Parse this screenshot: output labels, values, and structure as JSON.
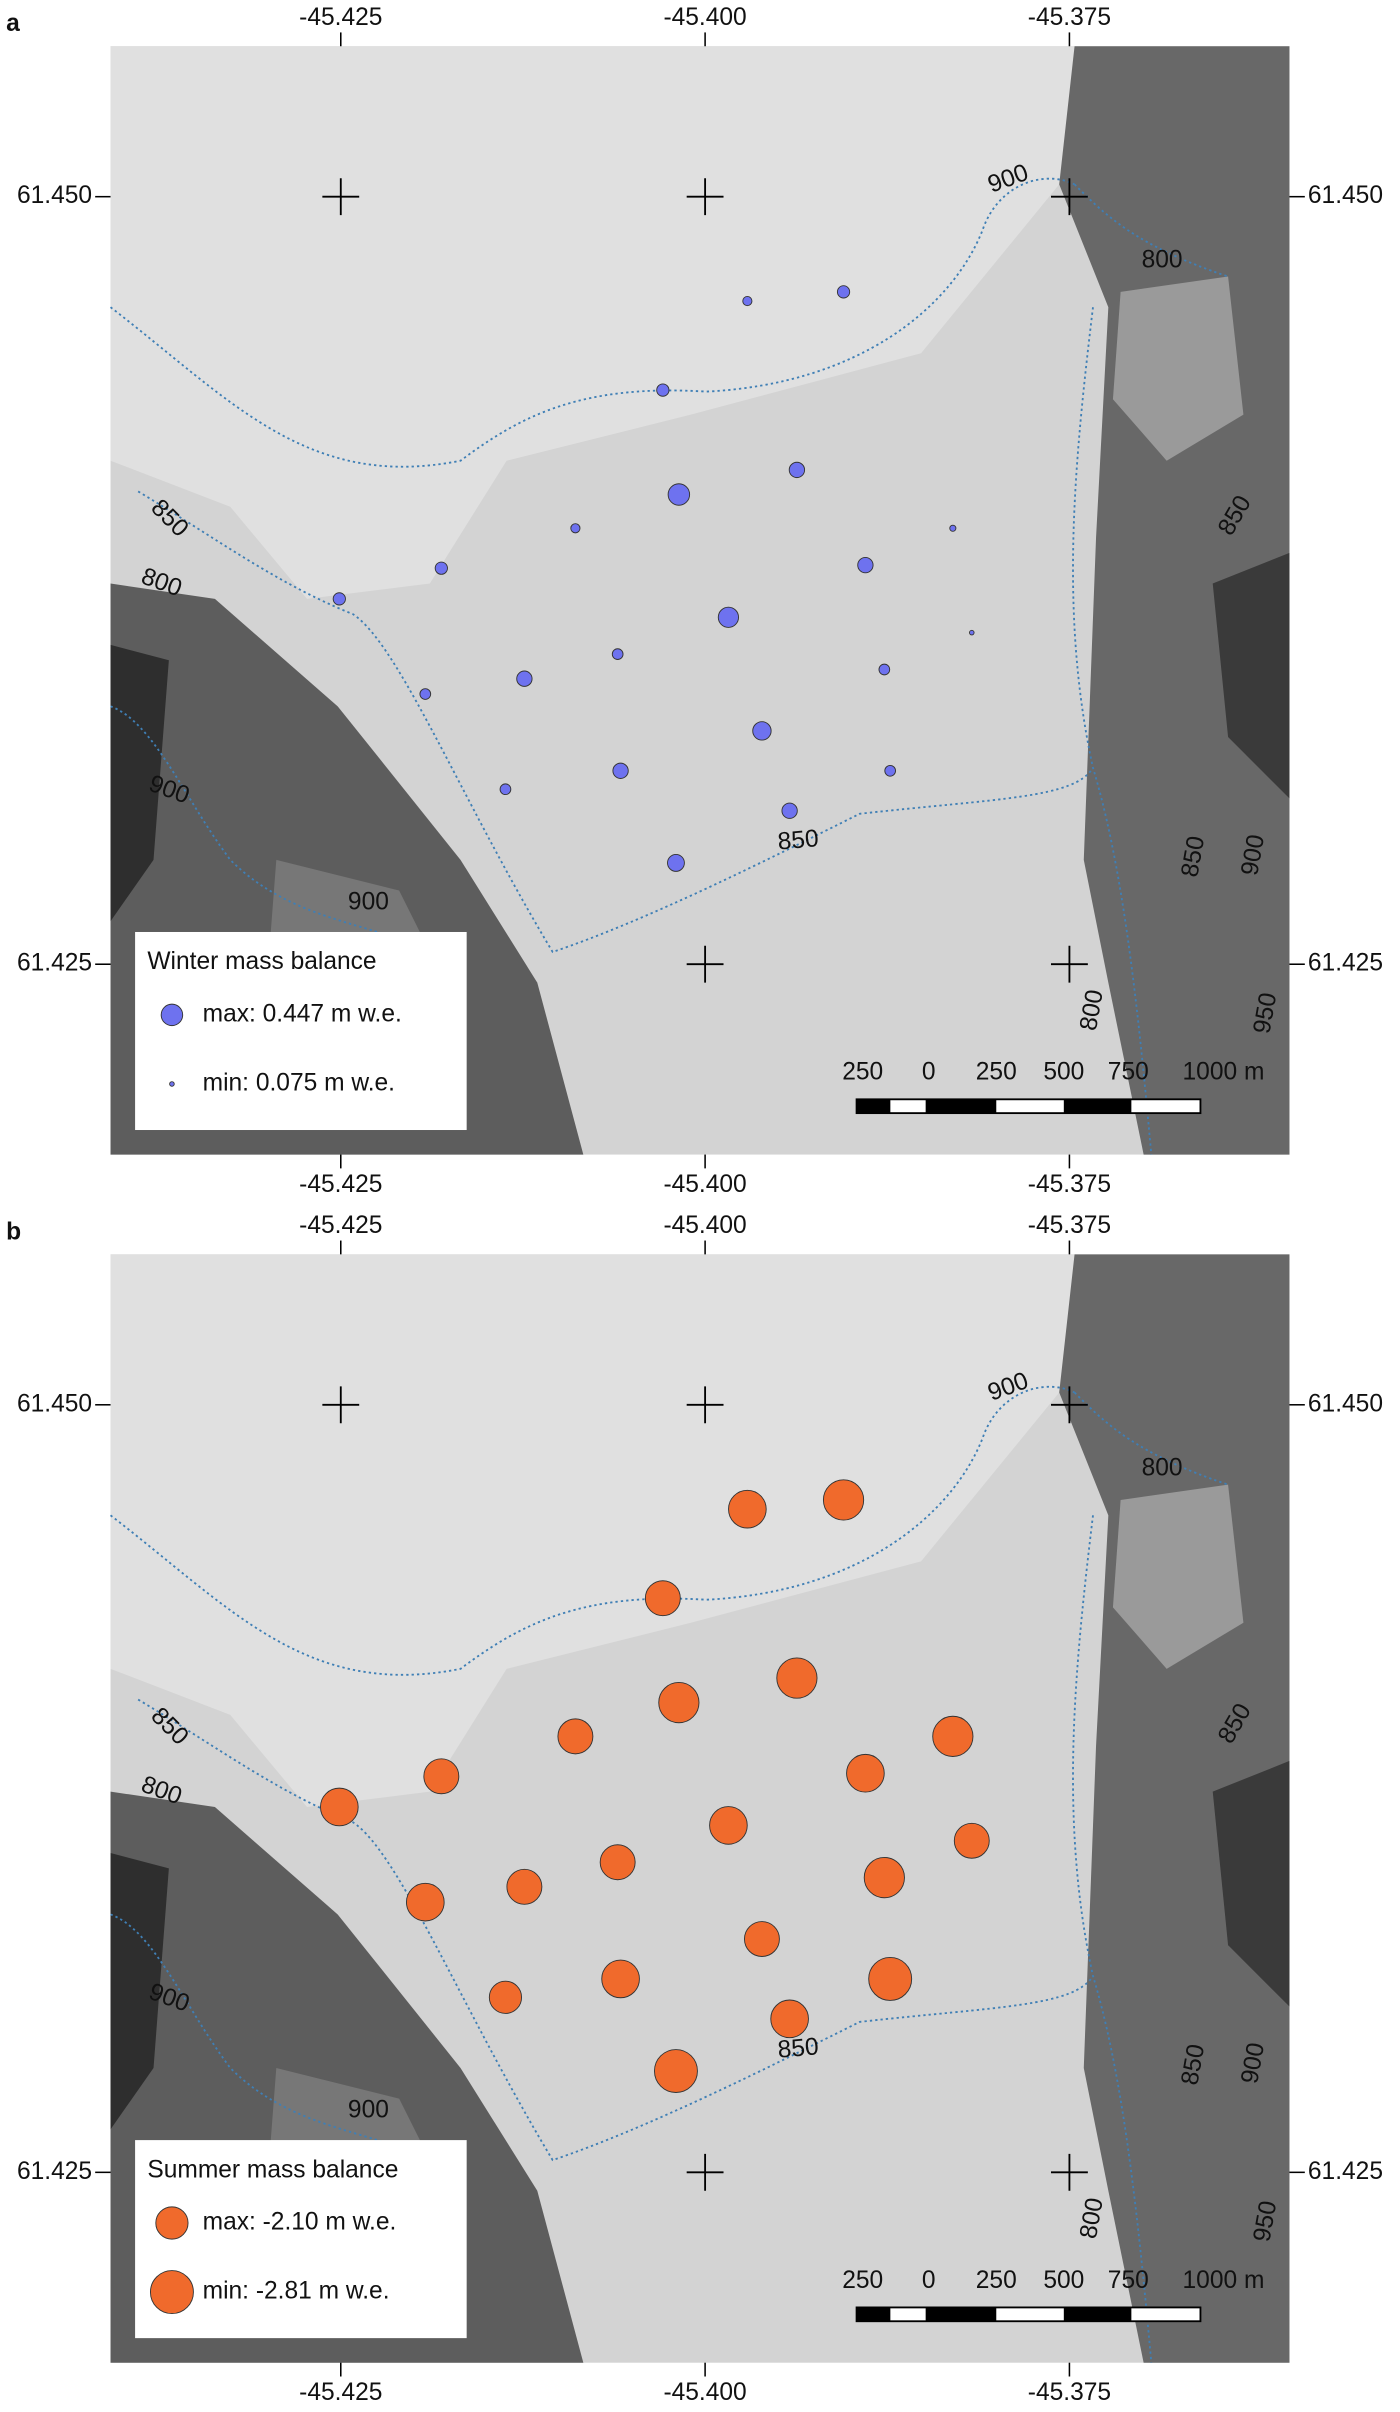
{
  "map": {
    "xlim": [
      -45.4408,
      -45.3599
    ],
    "ylim": [
      61.4188,
      61.4549
    ],
    "xticks": [
      {
        "value": -45.425,
        "label": "-45.425"
      },
      {
        "value": -45.4,
        "label": "-45.400"
      },
      {
        "value": -45.375,
        "label": "-45.375"
      }
    ],
    "yticks": [
      {
        "value": 61.45,
        "label": "61.450"
      },
      {
        "value": 61.425,
        "label": "61.425"
      }
    ]
  },
  "stakes": [
    {
      "lon": -45.3971,
      "lat": 61.4466
    },
    {
      "lon": -45.3905,
      "lat": 61.4469
    },
    {
      "lon": -45.4029,
      "lat": 61.4437
    },
    {
      "lon": -45.3937,
      "lat": 61.4411
    },
    {
      "lon": -45.4018,
      "lat": 61.4403
    },
    {
      "lon": -45.4089,
      "lat": 61.4392
    },
    {
      "lon": -45.383,
      "lat": 61.4392
    },
    {
      "lon": -45.4181,
      "lat": 61.4379
    },
    {
      "lon": -45.389,
      "lat": 61.438
    },
    {
      "lon": -45.4251,
      "lat": 61.4369
    },
    {
      "lon": -45.3984,
      "lat": 61.4363
    },
    {
      "lon": -45.3817,
      "lat": 61.4358
    },
    {
      "lon": -45.406,
      "lat": 61.4351
    },
    {
      "lon": -45.3877,
      "lat": 61.4346
    },
    {
      "lon": -45.4124,
      "lat": 61.4343
    },
    {
      "lon": -45.4192,
      "lat": 61.4338
    },
    {
      "lon": -45.3961,
      "lat": 61.4326
    },
    {
      "lon": -45.4058,
      "lat": 61.4313
    },
    {
      "lon": -45.3873,
      "lat": 61.4313
    },
    {
      "lon": -45.4137,
      "lat": 61.4307
    },
    {
      "lon": -45.3942,
      "lat": 61.43
    },
    {
      "lon": -45.402,
      "lat": 61.4283
    }
  ],
  "panels": [
    {
      "label": "a",
      "legend_title": "Winter mass balance",
      "color": "#6e72ef",
      "legend": [
        {
          "label": "max: 0.447 m w.e.",
          "value": 0.447
        },
        {
          "label": "min: 0.075 m w.e.",
          "value": 0.075
        }
      ],
      "values": [
        0.176,
        0.244,
        0.244,
        0.312,
        0.447,
        0.176,
        0.109,
        0.244,
        0.312,
        0.244,
        0.42,
        0.075,
        0.21,
        0.21,
        0.312,
        0.21,
        0.379,
        0.312,
        0.21,
        0.21,
        0.312,
        0.346
      ]
    },
    {
      "label": "b",
      "legend_title": "Summer mass balance",
      "color": "#f06a2c",
      "legend": [
        {
          "label": "max: -2.10 m w.e.",
          "value": -2.1
        },
        {
          "label": "min: -2.81 m w.e.",
          "value": -2.81
        }
      ],
      "values": [
        -2.46,
        -2.63,
        -2.28,
        -2.63,
        -2.63,
        -2.28,
        -2.63,
        -2.28,
        -2.46,
        -2.46,
        -2.46,
        -2.28,
        -2.28,
        -2.63,
        -2.28,
        -2.46,
        -2.28,
        -2.46,
        -2.81,
        -2.1,
        -2.46,
        -2.81
      ]
    }
  ],
  "contour_labels": [
    "900",
    "800",
    "850",
    "850",
    "800",
    "900",
    "850",
    "900",
    "850",
    "900",
    "800",
    "950"
  ],
  "scale_bar": [
    "250",
    "0",
    "250",
    "500",
    "750",
    "1000 m"
  ]
}
